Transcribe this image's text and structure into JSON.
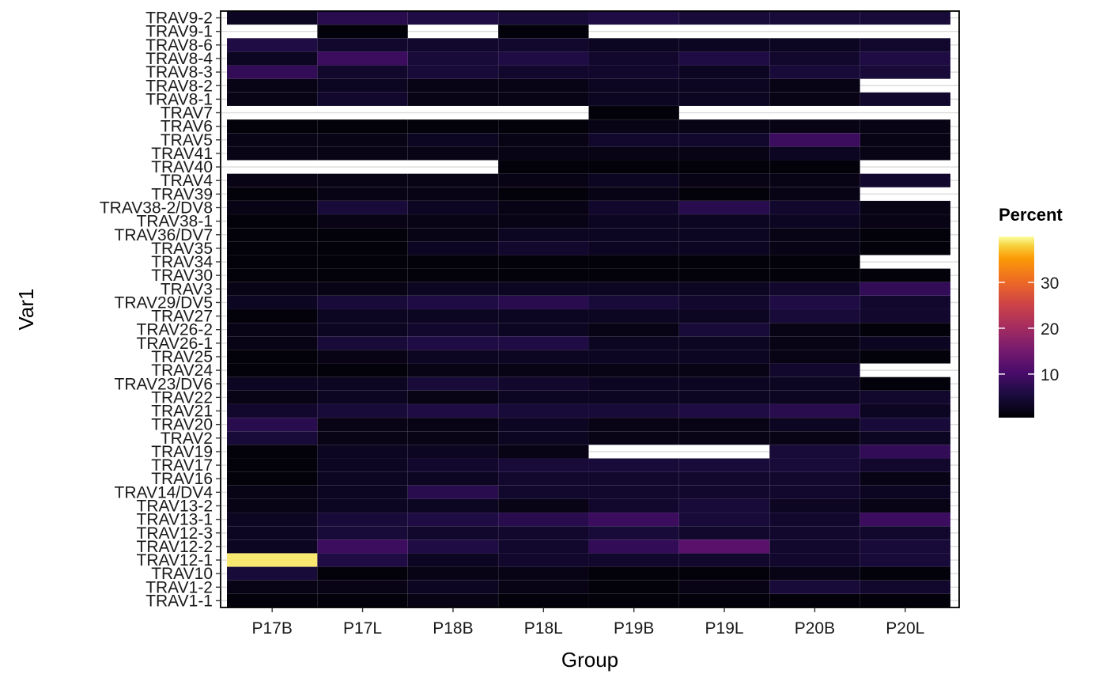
{
  "chart_data": {
    "type": "heatmap",
    "xlabel": "Group",
    "ylabel": "Var1",
    "categories": [
      "P17B",
      "P17L",
      "P18B",
      "P18L",
      "P19B",
      "P19L",
      "P20B",
      "P20L"
    ],
    "rows_top_to_bottom": [
      "TRAV9-2",
      "TRAV9-1",
      "TRAV8-6",
      "TRAV8-4",
      "TRAV8-3",
      "TRAV8-2",
      "TRAV8-1",
      "TRAV7",
      "TRAV6",
      "TRAV5",
      "TRAV41",
      "TRAV40",
      "TRAV4",
      "TRAV39",
      "TRAV38-2/DV8",
      "TRAV38-1",
      "TRAV36/DV7",
      "TRAV35",
      "TRAV34",
      "TRAV30",
      "TRAV3",
      "TRAV29/DV5",
      "TRAV27",
      "TRAV26-2",
      "TRAV26-1",
      "TRAV25",
      "TRAV24",
      "TRAV23/DV6",
      "TRAV22",
      "TRAV21",
      "TRAV20",
      "TRAV2",
      "TRAV19",
      "TRAV17",
      "TRAV16",
      "TRAV14/DV4",
      "TRAV13-2",
      "TRAV13-1",
      "TRAV12-3",
      "TRAV12-2",
      "TRAV12-1",
      "TRAV10",
      "TRAV1-2",
      "TRAV1-1"
    ],
    "values": [
      [
        3,
        7,
        6,
        5,
        6,
        5,
        5,
        5
      ],
      [
        null,
        1,
        null,
        1,
        null,
        null,
        null,
        null
      ],
      [
        6,
        4,
        4,
        4,
        3,
        3,
        3,
        4
      ],
      [
        3,
        9,
        5,
        6,
        4,
        6,
        4,
        6
      ],
      [
        8,
        4,
        5,
        4,
        4,
        3,
        5,
        5
      ],
      [
        2,
        3,
        2,
        2,
        3,
        3,
        2,
        null
      ],
      [
        2,
        4,
        2,
        2,
        3,
        3,
        2,
        4
      ],
      [
        null,
        null,
        null,
        null,
        1,
        null,
        null,
        null
      ],
      [
        1,
        1,
        1,
        1,
        2,
        2,
        2,
        2
      ],
      [
        2,
        2,
        3,
        2,
        4,
        4,
        9,
        2
      ],
      [
        2,
        2,
        2,
        2,
        2,
        2,
        3,
        2
      ],
      [
        null,
        null,
        null,
        1,
        1,
        1,
        1,
        null
      ],
      [
        2,
        2,
        2,
        2,
        3,
        2,
        2,
        4
      ],
      [
        1,
        2,
        2,
        1,
        2,
        1,
        2,
        null
      ],
      [
        2,
        5,
        3,
        2,
        4,
        7,
        4,
        2
      ],
      [
        1,
        2,
        2,
        2,
        3,
        3,
        3,
        2
      ],
      [
        1,
        1,
        2,
        3,
        3,
        3,
        2,
        1
      ],
      [
        1,
        1,
        3,
        4,
        3,
        3,
        2,
        1
      ],
      [
        1,
        1,
        1,
        1,
        1,
        1,
        1,
        null
      ],
      [
        1,
        1,
        1,
        1,
        1,
        1,
        1,
        1
      ],
      [
        2,
        2,
        3,
        3,
        3,
        3,
        4,
        8
      ],
      [
        3,
        5,
        6,
        7,
        5,
        4,
        6,
        4
      ],
      [
        1,
        3,
        3,
        3,
        3,
        3,
        5,
        4
      ],
      [
        2,
        3,
        4,
        3,
        2,
        5,
        2,
        1
      ],
      [
        2,
        5,
        6,
        6,
        3,
        3,
        2,
        3
      ],
      [
        1,
        2,
        3,
        3,
        3,
        3,
        2,
        1
      ],
      [
        1,
        1,
        2,
        2,
        2,
        2,
        4,
        null
      ],
      [
        3,
        3,
        5,
        4,
        3,
        3,
        3,
        1
      ],
      [
        2,
        3,
        2,
        3,
        3,
        3,
        3,
        4
      ],
      [
        4,
        5,
        6,
        5,
        5,
        6,
        7,
        3
      ],
      [
        7,
        2,
        2,
        3,
        2,
        2,
        3,
        5
      ],
      [
        5,
        2,
        2,
        3,
        2,
        2,
        2,
        3
      ],
      [
        1,
        3,
        3,
        2,
        null,
        null,
        5,
        8
      ],
      [
        1,
        3,
        4,
        5,
        5,
        5,
        5,
        4
      ],
      [
        1,
        3,
        3,
        4,
        4,
        4,
        4,
        2
      ],
      [
        2,
        3,
        7,
        4,
        4,
        4,
        4,
        3
      ],
      [
        2,
        3,
        3,
        2,
        4,
        5,
        3,
        2
      ],
      [
        3,
        5,
        6,
        7,
        9,
        5,
        4,
        9
      ],
      [
        3,
        5,
        4,
        4,
        5,
        4,
        4,
        4
      ],
      [
        3,
        9,
        6,
        4,
        8,
        12,
        4,
        5
      ],
      [
        39,
        6,
        3,
        4,
        4,
        4,
        4,
        5
      ],
      [
        5,
        1,
        2,
        2,
        1,
        1,
        2,
        1
      ],
      [
        2,
        2,
        3,
        2,
        1,
        2,
        5,
        4
      ],
      [
        1,
        1,
        2,
        1,
        1,
        1,
        1,
        1
      ]
    ],
    "scale": {
      "colormap": "inferno",
      "min": 0.5,
      "max": 40,
      "legend_ticks": [
        10,
        20,
        30
      ],
      "na_color": "#ffffff"
    },
    "legend": {
      "title": "Percent",
      "position": "right"
    },
    "grid": true
  }
}
